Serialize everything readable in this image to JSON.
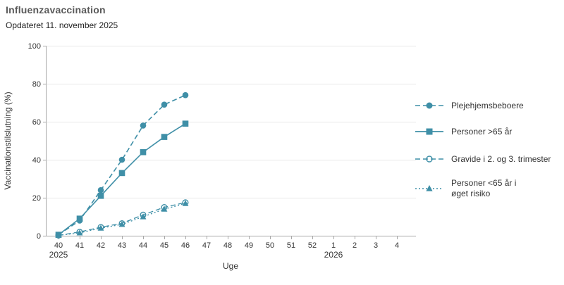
{
  "header": {
    "title": "Influenzavaccination",
    "subtitle": "Opdateret 11. november 2025"
  },
  "chart_data": {
    "type": "line",
    "title": "Influenzavaccination",
    "subtitle": "Opdateret 11. november 2025",
    "xlabel": "Uge",
    "ylabel": "Vaccinationstilslutning (%)",
    "ylim": [
      0,
      100
    ],
    "yticks": [
      0,
      20,
      40,
      60,
      80,
      100
    ],
    "x_categories": [
      "40",
      "41",
      "42",
      "43",
      "44",
      "45",
      "46",
      "47",
      "48",
      "49",
      "50",
      "51",
      "52",
      "1",
      "2",
      "3",
      "4"
    ],
    "year_labels": [
      {
        "text": "2025",
        "category": "40"
      },
      {
        "text": "2026",
        "category": "1"
      }
    ],
    "grid": "horizontal",
    "legend_position": "right",
    "colors": {
      "accent": "#3f8fa7",
      "grid": "#e8e8e8",
      "axis": "#a8a8a8",
      "tick_text": "#333333"
    },
    "series": [
      {
        "key": "plejehjemsbeboere",
        "name": "Plejehjemsbeboere",
        "line": "dashed",
        "marker": "circle-filled",
        "x": [
          "40",
          "41",
          "42",
          "43",
          "44",
          "45",
          "46"
        ],
        "values": [
          0.5,
          8,
          24,
          40,
          58,
          69,
          74
        ]
      },
      {
        "key": "personer-over-65",
        "name": "Personer >65 år",
        "line": "solid",
        "marker": "square-filled",
        "x": [
          "40",
          "41",
          "42",
          "43",
          "44",
          "45",
          "46"
        ],
        "values": [
          0.5,
          9,
          21,
          33,
          44,
          52,
          59
        ]
      },
      {
        "key": "gravide-2-3-trimester",
        "name": "Gravide i 2. og 3. trimester",
        "line": "dashed",
        "marker": "circle-open",
        "x": [
          "40",
          "41",
          "42",
          "43",
          "44",
          "45",
          "46"
        ],
        "values": [
          0.2,
          2,
          4.5,
          6.5,
          11,
          15,
          17.5
        ]
      },
      {
        "key": "under-65-oeget-risiko",
        "name": "Personer <65 år i øget risiko",
        "line": "dotted",
        "marker": "triangle-filled",
        "x": [
          "40",
          "41",
          "42",
          "43",
          "44",
          "45",
          "46"
        ],
        "values": [
          0.2,
          1.5,
          4,
          6,
          10,
          14,
          17
        ]
      }
    ]
  },
  "legend": {
    "items": [
      {
        "label": "Plejehjemsbeboere"
      },
      {
        "label": "Personer >65 år"
      },
      {
        "label": "Gravide i 2. og 3. trimester"
      },
      {
        "label": "Personer <65 år i\nøget risiko"
      }
    ]
  }
}
